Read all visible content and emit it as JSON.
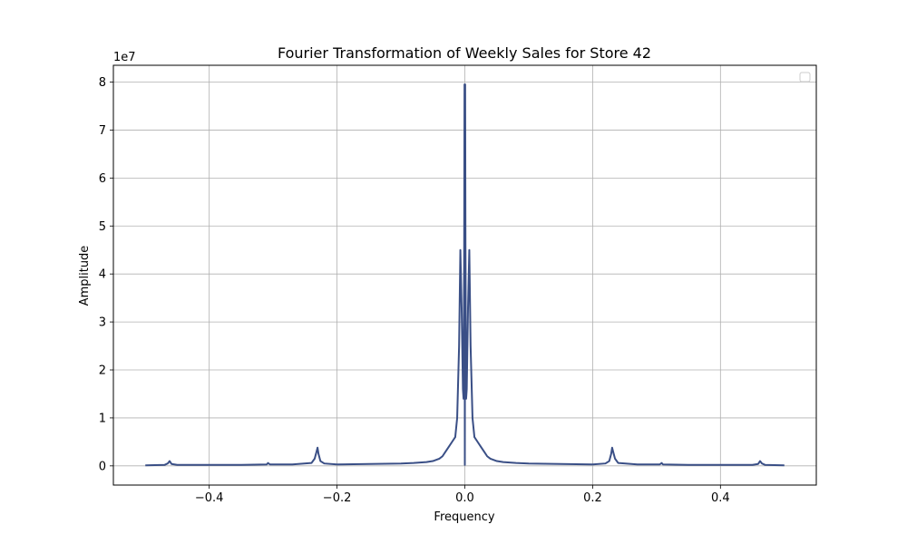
{
  "chart_data": {
    "type": "line",
    "title": "Fourier Transformation of Weekly Sales for Store 42",
    "xlabel": "Frequency",
    "ylabel": "Amplitude",
    "y_offset_text": "1e7",
    "xlim": [
      -0.55,
      0.55
    ],
    "ylim": [
      -0.4,
      8.35
    ],
    "x_ticks": [
      -0.4,
      -0.2,
      0.0,
      0.2,
      0.4
    ],
    "x_tick_labels": [
      "−0.4",
      "−0.2",
      "0.0",
      "0.2",
      "0.4"
    ],
    "y_ticks": [
      0,
      1,
      2,
      3,
      4,
      5,
      6,
      7,
      8
    ],
    "y_tick_labels": [
      "0",
      "1",
      "2",
      "3",
      "4",
      "5",
      "6",
      "7",
      "8"
    ],
    "grid": true,
    "legend": "top-right (empty)",
    "line_color": "#3a4f86",
    "series": [
      {
        "x": [
          -0.5,
          -0.47,
          -0.465,
          -0.462,
          -0.459,
          -0.45,
          -0.4,
          -0.35,
          -0.31,
          -0.308,
          -0.305,
          -0.27,
          -0.24,
          -0.235,
          -0.232,
          -0.2305,
          -0.229,
          -0.226,
          -0.22,
          -0.2,
          -0.15,
          -0.1,
          -0.08,
          -0.06,
          -0.05,
          -0.04,
          -0.035,
          -0.03,
          -0.025,
          -0.02,
          -0.015,
          -0.012,
          -0.009,
          -0.007,
          -0.005,
          -0.003,
          -0.002,
          -0.001,
          -0.0005,
          0.0,
          0.0005,
          0.001,
          0.002,
          0.003,
          0.005,
          0.007,
          0.009,
          0.012,
          0.015,
          0.02,
          0.025,
          0.03,
          0.035,
          0.04,
          0.05,
          0.06,
          0.08,
          0.1,
          0.15,
          0.2,
          0.22,
          0.226,
          0.229,
          0.2305,
          0.232,
          0.235,
          0.24,
          0.27,
          0.305,
          0.308,
          0.31,
          0.35,
          0.4,
          0.45,
          0.459,
          0.462,
          0.465,
          0.47,
          0.5
        ],
        "y": [
          0.01,
          0.02,
          0.05,
          0.1,
          0.04,
          0.02,
          0.02,
          0.02,
          0.03,
          0.06,
          0.03,
          0.03,
          0.06,
          0.15,
          0.3,
          0.38,
          0.25,
          0.1,
          0.05,
          0.03,
          0.04,
          0.05,
          0.06,
          0.08,
          0.1,
          0.15,
          0.2,
          0.3,
          0.4,
          0.5,
          0.6,
          1.0,
          2.5,
          4.5,
          3.3,
          1.6,
          1.4,
          4.6,
          7.95,
          0.02,
          7.95,
          4.6,
          1.4,
          1.6,
          3.3,
          4.5,
          2.5,
          1.0,
          0.6,
          0.5,
          0.4,
          0.3,
          0.2,
          0.15,
          0.1,
          0.08,
          0.06,
          0.05,
          0.04,
          0.03,
          0.05,
          0.1,
          0.25,
          0.38,
          0.3,
          0.15,
          0.06,
          0.03,
          0.03,
          0.06,
          0.03,
          0.02,
          0.02,
          0.02,
          0.04,
          0.1,
          0.05,
          0.02,
          0.01
        ]
      }
    ]
  }
}
